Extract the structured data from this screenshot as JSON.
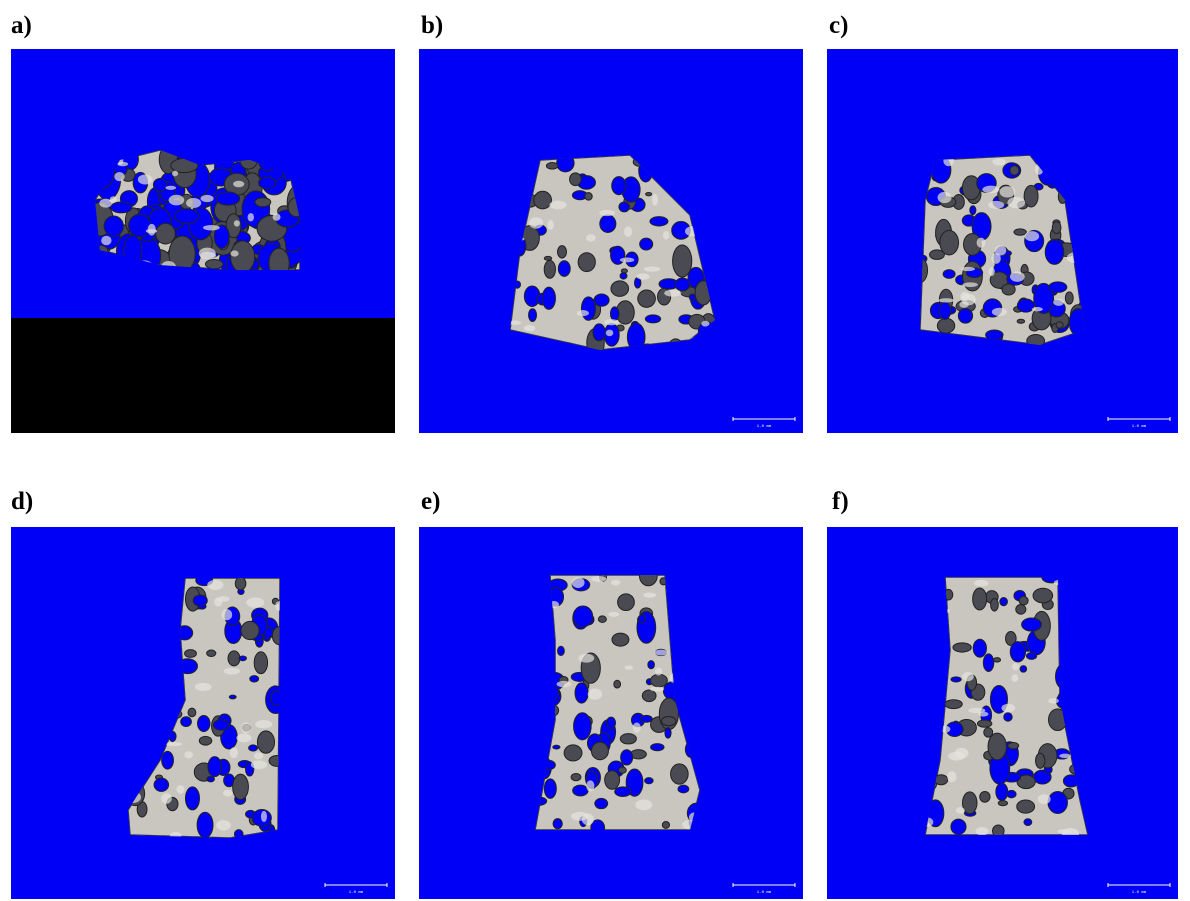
{
  "panels": [
    {
      "label": "a)"
    },
    {
      "label": "b)",
      "scale_bar": "1.0 mm"
    },
    {
      "label": "c)",
      "scale_bar": "1.0 mm"
    },
    {
      "label": "d)",
      "scale_bar": "1.0 mm"
    },
    {
      "label": "e)",
      "scale_bar": "1.0 mm"
    },
    {
      "label": "f)",
      "scale_bar": "1.0 mm"
    }
  ]
}
